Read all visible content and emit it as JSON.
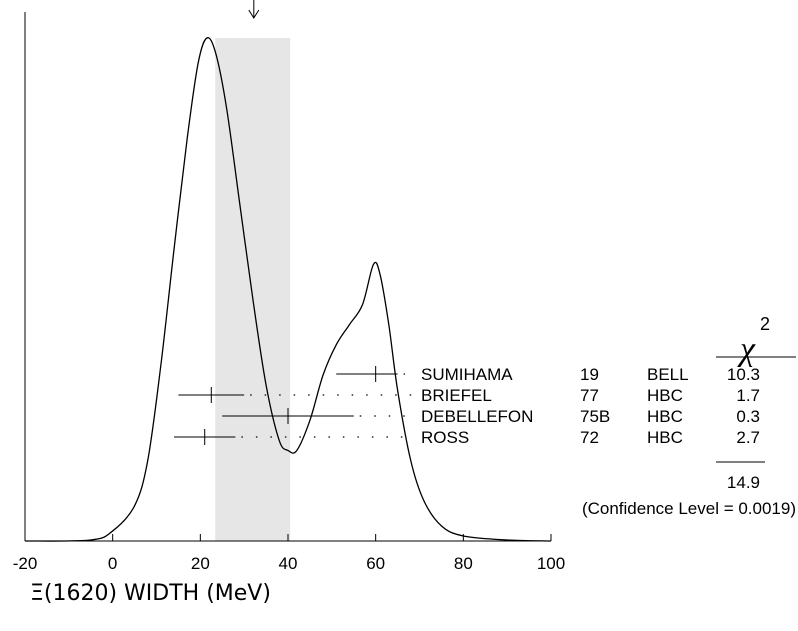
{
  "chart_data": {
    "type": "ideogram",
    "title": "",
    "xlabel": "Ξ(1620) WIDTH (MeV)",
    "xlim": [
      -20,
      100
    ],
    "x_ticks": [
      "-20",
      "0",
      "20",
      "40",
      "60",
      "80",
      "100"
    ],
    "weighted_average": {
      "value": 32.2,
      "band_low": 23.4,
      "band_high": 40.5
    },
    "curve": [
      [
        -20,
        0
      ],
      [
        -5,
        0.002
      ],
      [
        0,
        0.02
      ],
      [
        5,
        0.07
      ],
      [
        8,
        0.16
      ],
      [
        11,
        0.35
      ],
      [
        14,
        0.58
      ],
      [
        17,
        0.8
      ],
      [
        19.5,
        0.95
      ],
      [
        21.5,
        1.0
      ],
      [
        23.5,
        0.97
      ],
      [
        26,
        0.86
      ],
      [
        29,
        0.67
      ],
      [
        32,
        0.48
      ],
      [
        35,
        0.31
      ],
      [
        38,
        0.2
      ],
      [
        40,
        0.18
      ],
      [
        42,
        0.18
      ],
      [
        45,
        0.24
      ],
      [
        48,
        0.33
      ],
      [
        51,
        0.39
      ],
      [
        54,
        0.43
      ],
      [
        57,
        0.47
      ],
      [
        59.5,
        0.55
      ],
      [
        61,
        0.53
      ],
      [
        63,
        0.43
      ],
      [
        65,
        0.3
      ],
      [
        68,
        0.16
      ],
      [
        71,
        0.08
      ],
      [
        75,
        0.03
      ],
      [
        80,
        0.01
      ],
      [
        90,
        0.002
      ],
      [
        100,
        0
      ]
    ],
    "measurements": [
      {
        "name": "SUMIHAMA",
        "year": "19",
        "tech": "BELL",
        "chi2": "10.3",
        "value": 60,
        "err_low": 51,
        "err_high": 65
      },
      {
        "name": "BRIEFEL",
        "year": "77",
        "tech": "HBC",
        "chi2": "1.7",
        "value": 22.5,
        "err_low": 15,
        "err_high": 30
      },
      {
        "name": "DEBELLEFON",
        "year": "75B",
        "tech": "HBC",
        "chi2": "0.3",
        "value": 40,
        "err_low": 25,
        "err_high": 55
      },
      {
        "name": "ROSS",
        "year": "72",
        "tech": "HBC",
        "chi2": "2.7",
        "value": 21,
        "err_low": 14,
        "err_high": 28
      }
    ],
    "chi2_header": "χ",
    "chi2_superscript": "2",
    "chi2_total": "14.9",
    "confidence_level": "(Confidence Level = 0.0019)"
  }
}
